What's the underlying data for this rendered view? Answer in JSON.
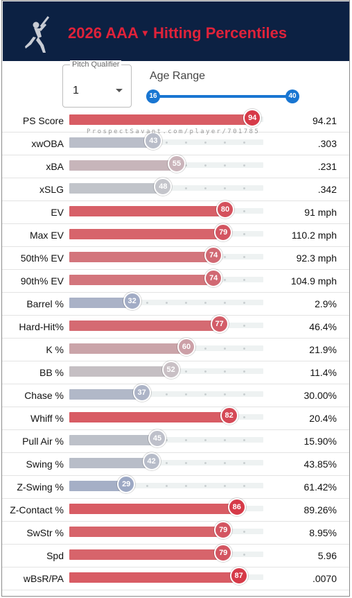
{
  "header": {
    "title_year": "2026 AAA",
    "title_caret": "▾",
    "title_main": "Hitting Percentiles",
    "logo_icon": "batter-silhouette-icon"
  },
  "controls": {
    "pitch_qualifier_label": "Pitch Qualifier",
    "pitch_qualifier_value": "1",
    "age_range_label": "Age Range",
    "age_min": "16",
    "age_max": "40"
  },
  "watermark": "ProspectSavant.com/player/701785",
  "colors": {
    "header_bg": "#0c2143",
    "title_red": "#e0223a",
    "slider_blue": "#1976d2"
  },
  "metrics": [
    {
      "label": "PS Score",
      "percentile": 94,
      "value": "94.21"
    },
    {
      "label": "xwOBA",
      "percentile": 43,
      "value": ".303"
    },
    {
      "label": "xBA",
      "percentile": 55,
      "value": ".231"
    },
    {
      "label": "xSLG",
      "percentile": 48,
      "value": ".342"
    },
    {
      "label": "EV",
      "percentile": 80,
      "value": "91 mph"
    },
    {
      "label": "Max EV",
      "percentile": 79,
      "value": "110.2 mph"
    },
    {
      "label": "50th% EV",
      "percentile": 74,
      "value": "92.3 mph"
    },
    {
      "label": "90th% EV",
      "percentile": 74,
      "value": "104.9 mph"
    },
    {
      "label": "Barrel %",
      "percentile": 32,
      "value": "2.9%"
    },
    {
      "label": "Hard-Hit%",
      "percentile": 77,
      "value": "46.4%"
    },
    {
      "label": "K %",
      "percentile": 60,
      "value": "21.9%"
    },
    {
      "label": "BB %",
      "percentile": 52,
      "value": "11.4%"
    },
    {
      "label": "Chase %",
      "percentile": 37,
      "value": "30.00%"
    },
    {
      "label": "Whiff %",
      "percentile": 82,
      "value": "20.4%"
    },
    {
      "label": "Pull Air %",
      "percentile": 45,
      "value": "15.90%"
    },
    {
      "label": "Swing %",
      "percentile": 42,
      "value": "43.85%"
    },
    {
      "label": "Z-Swing %",
      "percentile": 29,
      "value": "61.42%"
    },
    {
      "label": "Z-Contact %",
      "percentile": 86,
      "value": "89.26%"
    },
    {
      "label": "SwStr %",
      "percentile": 79,
      "value": "8.95%"
    },
    {
      "label": "Spd",
      "percentile": 79,
      "value": "5.96"
    },
    {
      "label": "wBsR/PA",
      "percentile": 87,
      "value": ".0070"
    }
  ]
}
